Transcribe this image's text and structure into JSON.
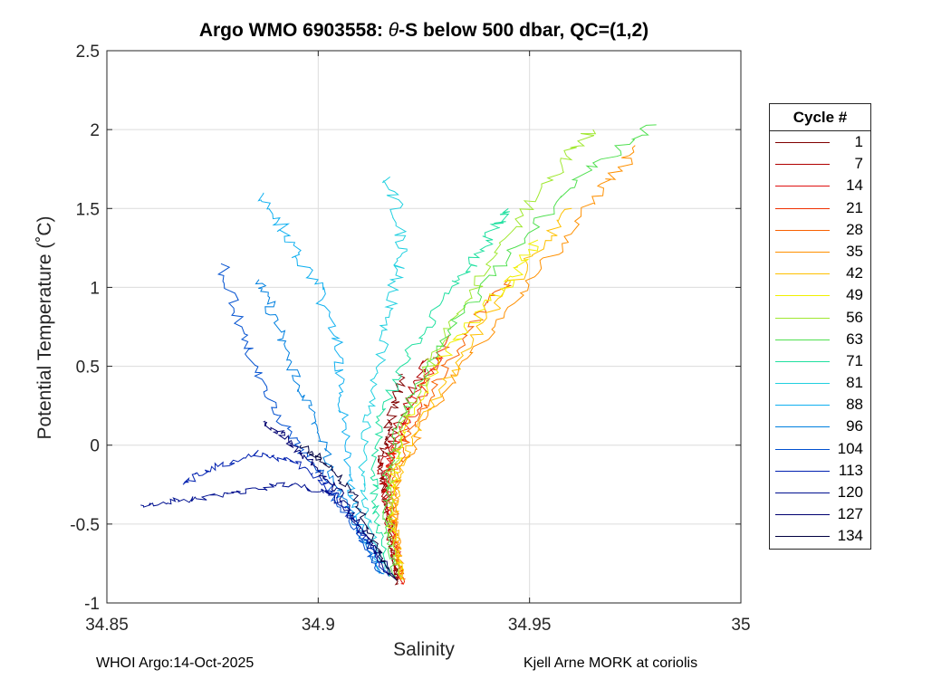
{
  "title_prefix": "Argo WMO 6903558: ",
  "title_theta": "θ",
  "title_suffix": "-S below 500 dbar,  QC=(1,2)",
  "footer": {
    "left": "WHOI Argo:14-Oct-2025",
    "right": "Kjell Arne MORK at coriolis"
  },
  "legend": {
    "title": "Cycle #",
    "items": [
      {
        "label": "1",
        "color": "#800000"
      },
      {
        "label": "7",
        "color": "#b00000"
      },
      {
        "label": "14",
        "color": "#e01010"
      },
      {
        "label": "21",
        "color": "#f03000"
      },
      {
        "label": "28",
        "color": "#f86000"
      },
      {
        "label": "35",
        "color": "#ff9000"
      },
      {
        "label": "42",
        "color": "#ffc000"
      },
      {
        "label": "49",
        "color": "#f0f000"
      },
      {
        "label": "56",
        "color": "#a0e830"
      },
      {
        "label": "63",
        "color": "#50e050"
      },
      {
        "label": "71",
        "color": "#20e0a0"
      },
      {
        "label": "81",
        "color": "#20d0e0"
      },
      {
        "label": "88",
        "color": "#10b0f0"
      },
      {
        "label": "96",
        "color": "#0080e0"
      },
      {
        "label": "104",
        "color": "#0050d0"
      },
      {
        "label": "113",
        "color": "#0020b0"
      },
      {
        "label": "120",
        "color": "#001090"
      },
      {
        "label": "127",
        "color": "#000070"
      },
      {
        "label": "134",
        "color": "#000040"
      }
    ]
  },
  "chart_data": {
    "type": "line",
    "title": "Argo WMO 6903558: θ-S below 500 dbar,  QC=(1,2)",
    "xlabel": "Salinity",
    "ylabel": "Potential Temperature (˚C)",
    "xlim": [
      34.85,
      35
    ],
    "ylim": [
      -1,
      2.5
    ],
    "x_ticks": [
      "34.85",
      "34.9",
      "34.95",
      "35"
    ],
    "y_ticks": [
      "-1",
      "-0.5",
      "0",
      "0.5",
      "1",
      "1.5",
      "2",
      "2.5"
    ],
    "x_tick_values": [
      34.85,
      34.9,
      34.95,
      35
    ],
    "y_tick_values": [
      -1,
      -0.5,
      0,
      0.5,
      1,
      1.5,
      2,
      2.5
    ],
    "grid": true,
    "legend_title": "Cycle #",
    "series": [
      {
        "name": "1",
        "color": "#800000",
        "x": [
          34.919,
          34.918,
          34.917,
          34.916,
          34.915,
          34.916,
          34.918,
          34.92
        ],
        "y": [
          -0.88,
          -0.75,
          -0.55,
          -0.3,
          -0.12,
          0.05,
          0.25,
          0.45
        ]
      },
      {
        "name": "7",
        "color": "#b00000",
        "x": [
          34.919,
          34.917,
          34.916,
          34.915,
          34.917,
          34.921,
          34.926
        ],
        "y": [
          -0.87,
          -0.6,
          -0.35,
          -0.15,
          0.0,
          0.25,
          0.55
        ]
      },
      {
        "name": "14",
        "color": "#e01010",
        "x": [
          34.92,
          34.918,
          34.917,
          34.916,
          34.918,
          34.922,
          34.928
        ],
        "y": [
          -0.88,
          -0.6,
          -0.4,
          -0.2,
          -0.02,
          0.25,
          0.55
        ]
      },
      {
        "name": "21",
        "color": "#f03000",
        "x": [
          34.92,
          34.918,
          34.917,
          34.917,
          34.92,
          34.925,
          34.931
        ],
        "y": [
          -0.87,
          -0.6,
          -0.35,
          -0.1,
          0.05,
          0.35,
          0.7
        ]
      },
      {
        "name": "28",
        "color": "#f86000",
        "x": [
          34.92,
          34.918,
          34.918,
          34.92,
          34.926,
          34.935,
          34.945
        ],
        "y": [
          -0.86,
          -0.55,
          -0.25,
          0.0,
          0.3,
          0.7,
          1.05
        ]
      },
      {
        "name": "35",
        "color": "#ff9000",
        "x": [
          34.92,
          34.918,
          34.919,
          34.925,
          34.937,
          34.952,
          34.967,
          34.975
        ],
        "y": [
          -0.85,
          -0.5,
          -0.2,
          0.15,
          0.6,
          1.1,
          1.6,
          1.9
        ]
      },
      {
        "name": "42",
        "color": "#ffc000",
        "x": [
          34.92,
          34.918,
          34.919,
          34.924,
          34.935,
          34.948,
          34.96
        ],
        "y": [
          -0.85,
          -0.5,
          -0.2,
          0.15,
          0.6,
          1.1,
          1.5
        ]
      },
      {
        "name": "49",
        "color": "#f0f000",
        "x": [
          34.92,
          34.917,
          34.918,
          34.922,
          34.932,
          34.944,
          34.952
        ],
        "y": [
          -0.84,
          -0.5,
          -0.2,
          0.2,
          0.65,
          1.0,
          1.3
        ]
      },
      {
        "name": "56",
        "color": "#a0e830",
        "x": [
          34.919,
          34.917,
          34.917,
          34.921,
          34.93,
          34.942,
          34.955,
          34.965
        ],
        "y": [
          -0.84,
          -0.5,
          -0.2,
          0.2,
          0.7,
          1.2,
          1.7,
          2.0
        ]
      },
      {
        "name": "63",
        "color": "#50e050",
        "x": [
          34.918,
          34.916,
          34.916,
          34.92,
          34.93,
          34.945,
          34.962,
          34.98
        ],
        "y": [
          -0.83,
          -0.5,
          -0.2,
          0.2,
          0.7,
          1.2,
          1.7,
          2.03
        ]
      },
      {
        "name": "71",
        "color": "#20e0a0",
        "x": [
          34.917,
          34.914,
          34.913,
          34.915,
          34.922,
          34.932,
          34.94,
          34.945
        ],
        "y": [
          -0.83,
          -0.5,
          -0.2,
          0.2,
          0.6,
          1.0,
          1.3,
          1.5
        ]
      },
      {
        "name": "81",
        "color": "#20d0e0",
        "x": [
          34.916,
          34.912,
          34.91,
          34.912,
          34.915,
          34.918,
          34.92,
          34.917
        ],
        "y": [
          -0.82,
          -0.5,
          -0.2,
          0.2,
          0.6,
          1.0,
          1.3,
          1.7
        ]
      },
      {
        "name": "88",
        "color": "#10b0f0",
        "x": [
          34.915,
          34.91,
          34.907,
          34.906,
          34.905,
          34.9,
          34.893,
          34.887
        ],
        "y": [
          -0.82,
          -0.5,
          -0.2,
          0.2,
          0.6,
          1.0,
          1.3,
          1.6
        ]
      },
      {
        "name": "96",
        "color": "#0080e0",
        "x": [
          34.915,
          34.909,
          34.904,
          34.9,
          34.895,
          34.89,
          34.886
        ],
        "y": [
          -0.82,
          -0.5,
          -0.25,
          0.1,
          0.4,
          0.8,
          1.05
        ]
      },
      {
        "name": "104",
        "color": "#0050d0",
        "x": [
          34.915,
          34.908,
          34.901,
          34.895,
          34.888,
          34.882,
          34.877
        ],
        "y": [
          -0.82,
          -0.5,
          -0.2,
          0.0,
          0.3,
          0.7,
          1.15
        ]
      },
      {
        "name": "113",
        "color": "#0020b0",
        "x": [
          34.916,
          34.909,
          34.902,
          34.894,
          34.885,
          34.875,
          34.868
        ],
        "y": [
          -0.82,
          -0.5,
          -0.25,
          -0.1,
          -0.05,
          -0.15,
          -0.25
        ]
      },
      {
        "name": "120",
        "color": "#001090",
        "x": [
          34.917,
          34.91,
          34.903,
          34.893,
          34.88,
          34.868,
          34.858
        ],
        "y": [
          -0.83,
          -0.55,
          -0.3,
          -0.25,
          -0.3,
          -0.35,
          -0.38
        ]
      },
      {
        "name": "127",
        "color": "#000070",
        "x": [
          34.918,
          34.912,
          34.905,
          34.898,
          34.892,
          34.887
        ],
        "y": [
          -0.84,
          -0.6,
          -0.3,
          -0.1,
          0.05,
          0.15
        ]
      },
      {
        "name": "134",
        "color": "#000040",
        "x": [
          34.918,
          34.913,
          34.908,
          34.902,
          34.896
        ],
        "y": [
          -0.85,
          -0.6,
          -0.3,
          -0.12,
          0.0
        ]
      }
    ]
  }
}
